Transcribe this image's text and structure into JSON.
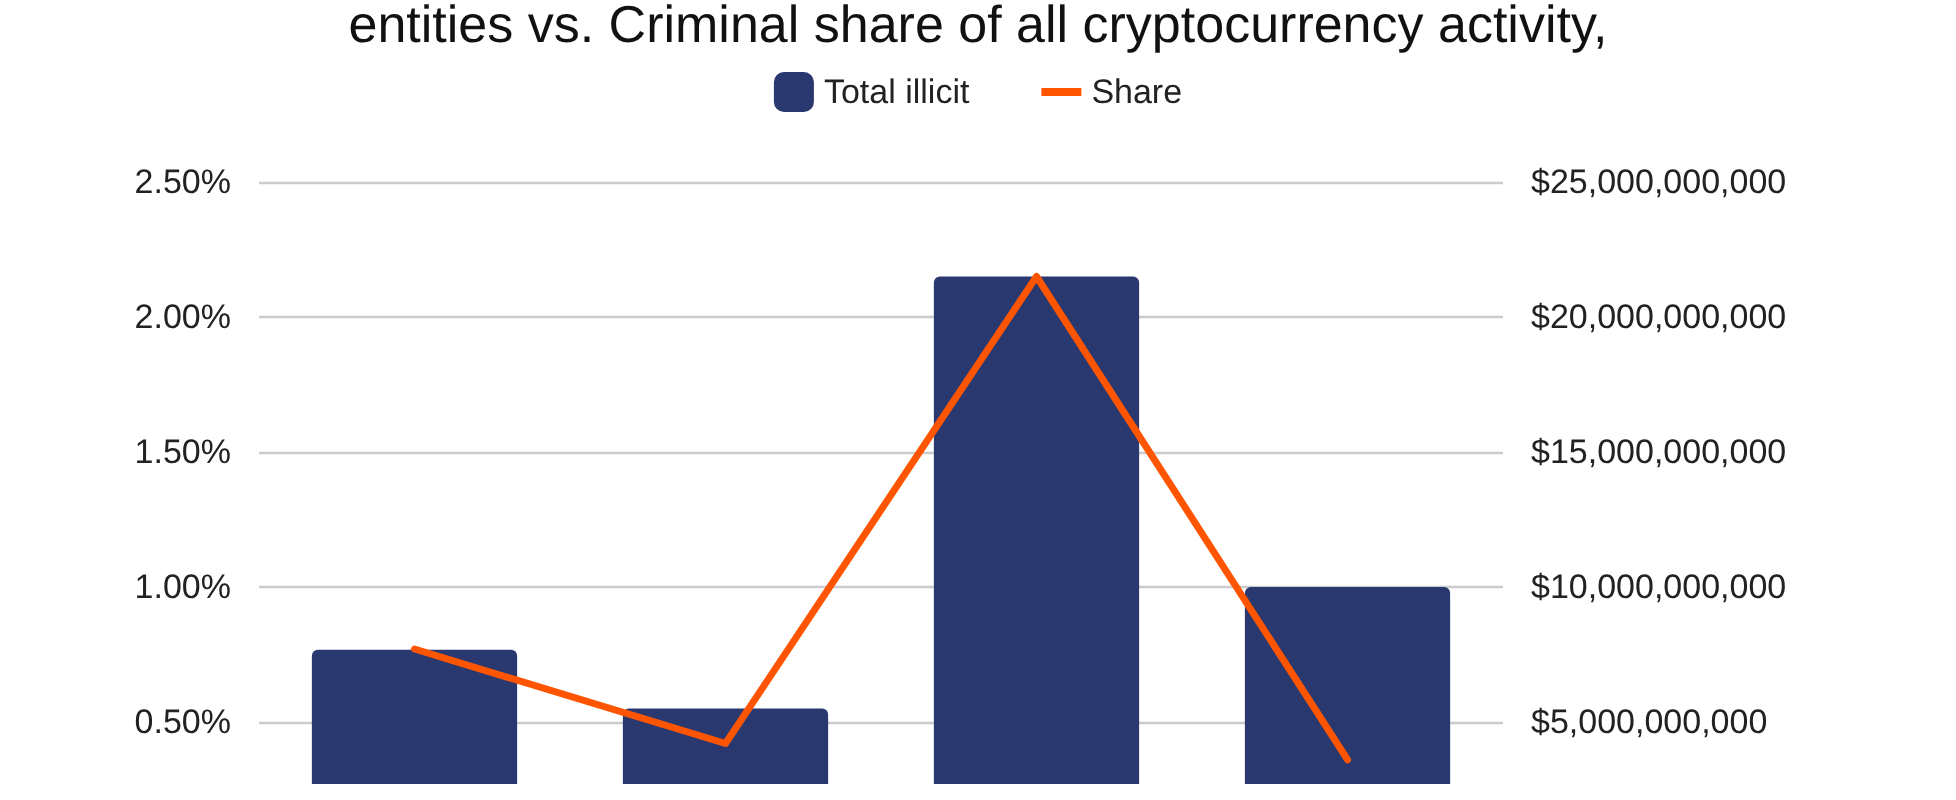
{
  "chart_data": {
    "type": "bar",
    "title": "entities vs. Criminal share of all cryptocurrency activity,",
    "categories": [
      null,
      null,
      null,
      null
    ],
    "series": [
      {
        "name": "Total illicit",
        "axis": "y2",
        "color": "#2a3870",
        "values": [
          7670000000,
          5500000000,
          21500000000,
          10000000000
        ]
      },
      {
        "name": "Share",
        "type": "line",
        "axis": "y",
        "color": "#ff5500",
        "values": [
          0.77,
          0.42,
          2.15,
          0.36
        ]
      }
    ],
    "ylim": [
      0.27,
      2.5
    ],
    "yticks": [
      {
        "value": 0.5,
        "label": "0.50%"
      },
      {
        "value": 1,
        "label": "1.00%"
      },
      {
        "value": 1.5,
        "label": "1.50%"
      },
      {
        "value": 2,
        "label": "2.00%"
      },
      {
        "value": 2.5,
        "label": "2.50%"
      }
    ],
    "y2lim": [
      2700000000,
      25000000000
    ],
    "y2ticks": [
      {
        "value": 5000000000,
        "label": "$5,000,000,000"
      },
      {
        "value": 10000000000,
        "label": "$10,000,000,000"
      },
      {
        "value": 15000000000,
        "label": "$15,000,000,000"
      },
      {
        "value": 20000000000,
        "label": "$20,000,000,000"
      },
      {
        "value": 25000000000,
        "label": "$25,000,000,000"
      }
    ],
    "grid": "y",
    "legend": "top",
    "marker": "none",
    "line_style": "solid"
  }
}
